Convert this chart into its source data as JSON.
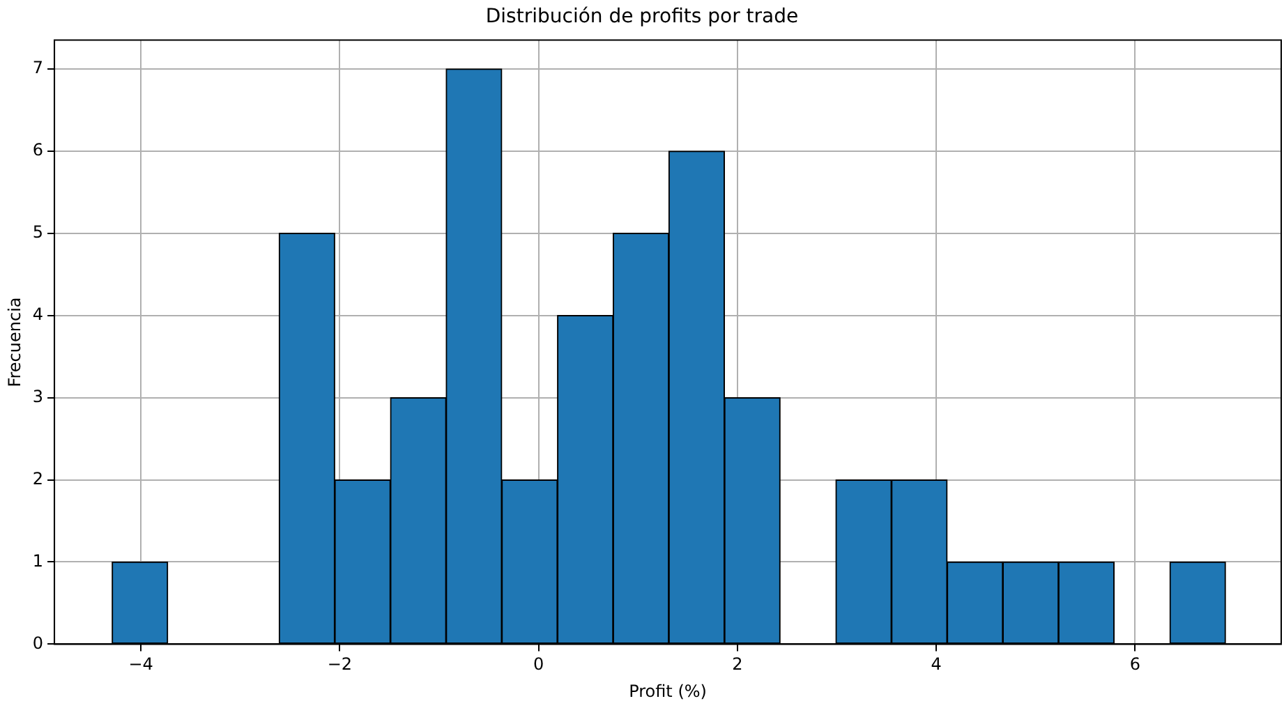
{
  "chart_data": {
    "type": "histogram",
    "title": "Distribución de profits por trade",
    "xlabel": "Profit (%)",
    "ylabel": "Frecuencia",
    "bins": [
      -4.29,
      -3.73,
      -3.17,
      -2.61,
      -2.05,
      -1.49,
      -0.93,
      -0.37,
      0.19,
      0.75,
      1.31,
      1.87,
      2.43,
      2.99,
      3.55,
      4.11,
      4.67,
      5.23,
      5.79,
      6.35,
      6.91
    ],
    "values": [
      1,
      0,
      0,
      5,
      2,
      3,
      7,
      2,
      4,
      5,
      6,
      3,
      0,
      2,
      2,
      1,
      1,
      1,
      0,
      1
    ],
    "color": "#1f77b4",
    "xlim": [
      -4.87,
      7.47
    ],
    "xticks": [
      {
        "value": -4,
        "label": "−4"
      },
      {
        "value": -2,
        "label": "−2"
      },
      0,
      2,
      4,
      6
    ],
    "ylim": [
      0,
      7.35
    ],
    "yticks": [
      0,
      1,
      2,
      3,
      4,
      5,
      6,
      7
    ],
    "grid": true,
    "legend": false
  }
}
